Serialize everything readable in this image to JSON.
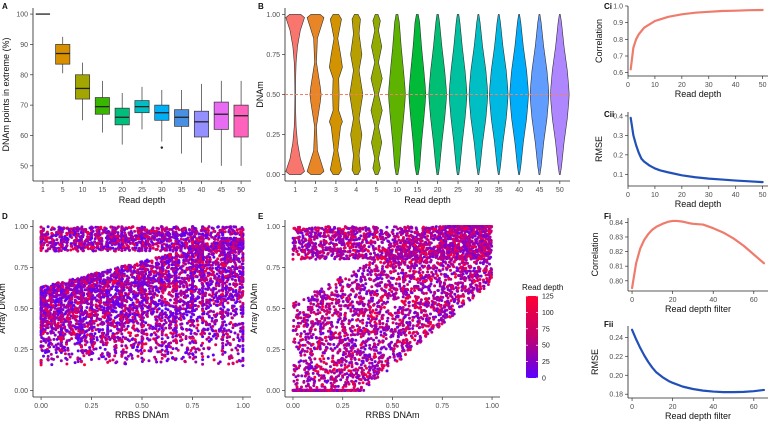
{
  "chart_data": [
    {
      "id": "A",
      "panel_label": "A",
      "type": "box",
      "xlabel": "Read depth",
      "ylabel": "DNAm points in extreme (%)",
      "categories": [
        "1",
        "5",
        "10",
        "15",
        "20",
        "25",
        "30",
        "35",
        "40",
        "45",
        "50"
      ],
      "ylim": [
        45,
        102
      ],
      "yticks": [
        "50",
        "60",
        "70",
        "80",
        "90",
        "100"
      ],
      "ytick_values": [
        50,
        60,
        70,
        80,
        90,
        100
      ],
      "colors": [
        "#f8766d",
        "#d89000",
        "#a3a500",
        "#39b600",
        "#00bf7d",
        "#00bfc4",
        "#00b0f6",
        "#4a90e2",
        "#9590ff",
        "#e76bf3",
        "#ff62bc"
      ],
      "boxes": [
        {
          "min": 100,
          "q1": 100,
          "median": 100,
          "q3": 100,
          "max": 100,
          "outliers": []
        },
        {
          "min": 80.5,
          "q1": 83.5,
          "median": 87,
          "q3": 90,
          "max": 92.5,
          "outliers": []
        },
        {
          "min": 65,
          "q1": 72,
          "median": 75.5,
          "q3": 80,
          "max": 84,
          "outliers": []
        },
        {
          "min": 61,
          "q1": 67,
          "median": 69.5,
          "q3": 72.5,
          "max": 78,
          "outliers": []
        },
        {
          "min": 57,
          "q1": 63.5,
          "median": 66,
          "q3": 69,
          "max": 74,
          "outliers": []
        },
        {
          "min": 62,
          "q1": 67.5,
          "median": 69.5,
          "q3": 71.5,
          "max": 76,
          "outliers": []
        },
        {
          "min": 58,
          "q1": 65,
          "median": 67.5,
          "q3": 70,
          "max": 75,
          "outliers": [
            56
          ]
        },
        {
          "min": 54,
          "q1": 63,
          "median": 66,
          "q3": 68.5,
          "max": 75,
          "outliers": []
        },
        {
          "min": 51,
          "q1": 59.5,
          "median": 64.5,
          "q3": 68,
          "max": 77,
          "outliers": []
        },
        {
          "min": 50,
          "q1": 62,
          "median": 67,
          "q3": 71,
          "max": 78,
          "outliers": []
        },
        {
          "min": 50,
          "q1": 59.5,
          "median": 66.5,
          "q3": 70,
          "max": 78,
          "outliers": []
        }
      ]
    },
    {
      "id": "B",
      "panel_label": "B",
      "type": "violin",
      "xlabel": "Read depth",
      "ylabel": "DNAm",
      "categories": [
        "1",
        "2",
        "3",
        "4",
        "5",
        "10",
        "15",
        "20",
        "25",
        "30",
        "35",
        "40",
        "45",
        "50"
      ],
      "ylim": [
        0,
        1
      ],
      "yticks": [
        "0.00",
        "0.25",
        "0.50",
        "0.75",
        "1.00"
      ],
      "ytick_values": [
        0,
        0.25,
        0.5,
        0.75,
        1
      ],
      "reference_line": 0.5,
      "reference_color": "#f08060",
      "colors": [
        "#f8766d",
        "#e88526",
        "#d39200",
        "#b79f00",
        "#93aa00",
        "#5eb300",
        "#00ba38",
        "#00bf74",
        "#00c19f",
        "#00bfc4",
        "#00b9e3",
        "#00adfa",
        "#619cff",
        "#ae87ff",
        "#db72fb",
        "#f564e3",
        "#ff61c3"
      ],
      "kde_profiles": [
        {
          "y": [
            0,
            0.02,
            0.1,
            0.2,
            0.3,
            0.4,
            0.5,
            0.6,
            0.7,
            0.8,
            0.9,
            0.98,
            1
          ],
          "w": [
            0.6,
            1,
            0.55,
            0.25,
            0.1,
            0.05,
            0.03,
            0.05,
            0.1,
            0.25,
            0.55,
            1,
            0.6
          ]
        },
        {
          "y": [
            0,
            0.02,
            0.15,
            0.3,
            0.45,
            0.5,
            0.55,
            0.7,
            0.85,
            0.98,
            1
          ],
          "w": [
            0.5,
            0.9,
            0.2,
            0.1,
            0.5,
            0.6,
            0.5,
            0.1,
            0.2,
            0.9,
            0.5
          ]
        },
        {
          "y": [
            0,
            0.03,
            0.15,
            0.3,
            0.33,
            0.4,
            0.5,
            0.6,
            0.67,
            0.75,
            0.85,
            0.97,
            1
          ],
          "w": [
            0.3,
            0.6,
            0.2,
            0.5,
            0.7,
            0.3,
            0.35,
            0.3,
            0.7,
            0.5,
            0.2,
            0.6,
            0.3
          ]
        },
        {
          "y": [
            0,
            0.03,
            0.12,
            0.25,
            0.35,
            0.5,
            0.65,
            0.75,
            0.88,
            0.97,
            1
          ],
          "w": [
            0.2,
            0.45,
            0.3,
            0.6,
            0.3,
            0.7,
            0.3,
            0.6,
            0.3,
            0.45,
            0.2
          ]
        },
        {
          "y": [
            0,
            0.04,
            0.1,
            0.2,
            0.3,
            0.4,
            0.5,
            0.6,
            0.7,
            0.8,
            0.9,
            0.96,
            1
          ],
          "w": [
            0.15,
            0.4,
            0.2,
            0.55,
            0.2,
            0.6,
            0.2,
            0.6,
            0.2,
            0.55,
            0.2,
            0.4,
            0.15
          ]
        },
        {
          "y": [
            0,
            0.05,
            0.2,
            0.35,
            0.45,
            0.5,
            0.55,
            0.65,
            0.8,
            0.95,
            1
          ],
          "w": [
            0.1,
            0.25,
            0.45,
            0.7,
            0.85,
            0.9,
            0.85,
            0.7,
            0.45,
            0.25,
            0.1
          ]
        },
        {
          "y": [
            0,
            0.05,
            0.2,
            0.35,
            0.45,
            0.5,
            0.55,
            0.65,
            0.8,
            0.95,
            1
          ],
          "w": [
            0.08,
            0.2,
            0.45,
            0.75,
            0.9,
            0.95,
            0.9,
            0.75,
            0.45,
            0.2,
            0.08
          ]
        },
        {
          "y": [
            0,
            0.05,
            0.2,
            0.35,
            0.45,
            0.5,
            0.55,
            0.65,
            0.8,
            0.95,
            1
          ],
          "w": [
            0.05,
            0.18,
            0.45,
            0.8,
            0.95,
            1,
            0.95,
            0.8,
            0.45,
            0.18,
            0.05
          ]
        }
      ],
      "profile_index": [
        0,
        1,
        2,
        3,
        4,
        5,
        5,
        6,
        6,
        7,
        7,
        7,
        7,
        7
      ]
    },
    {
      "id": "Ci",
      "panel_label": "Ci",
      "type": "line",
      "xlabel": "Read depth",
      "ylabel": "Correlation",
      "x": [
        1,
        2,
        3,
        4,
        5,
        6,
        8,
        10,
        12,
        15,
        20,
        25,
        30,
        35,
        40,
        45,
        50
      ],
      "y": [
        0.62,
        0.75,
        0.8,
        0.83,
        0.85,
        0.87,
        0.89,
        0.91,
        0.92,
        0.935,
        0.95,
        0.96,
        0.965,
        0.97,
        0.972,
        0.975,
        0.976
      ],
      "xlim": [
        0,
        52
      ],
      "ylim": [
        0.58,
        1.0
      ],
      "xticks": [
        "0",
        "10",
        "20",
        "30",
        "40",
        "50"
      ],
      "xtick_values": [
        0,
        10,
        20,
        30,
        40,
        50
      ],
      "yticks": [
        "0.6",
        "0.7",
        "0.8",
        "0.9",
        "1.0"
      ],
      "ytick_values": [
        0.6,
        0.7,
        0.8,
        0.9,
        1.0
      ],
      "color": "#ef7b6d"
    },
    {
      "id": "Cii",
      "panel_label": "Cii",
      "type": "line",
      "xlabel": "Read depth",
      "ylabel": "RMSE",
      "x": [
        1,
        2,
        3,
        4,
        5,
        6,
        8,
        10,
        12,
        15,
        20,
        25,
        30,
        35,
        40,
        45,
        50
      ],
      "y": [
        0.39,
        0.3,
        0.25,
        0.21,
        0.18,
        0.165,
        0.145,
        0.13,
        0.12,
        0.11,
        0.095,
        0.085,
        0.078,
        0.073,
        0.068,
        0.064,
        0.06
      ],
      "xlim": [
        0,
        52
      ],
      "ylim": [
        0.04,
        0.42
      ],
      "xticks": [
        "0",
        "10",
        "20",
        "30",
        "40",
        "50"
      ],
      "xtick_values": [
        0,
        10,
        20,
        30,
        40,
        50
      ],
      "yticks": [
        "0.1",
        "0.2",
        "0.3",
        "0.4"
      ],
      "ytick_values": [
        0.1,
        0.2,
        0.3,
        0.4
      ],
      "color": "#2050b8"
    },
    {
      "id": "D",
      "panel_label": "D",
      "type": "scatter",
      "xlabel": "RRBS DNAm",
      "ylabel": "Array DNAm",
      "xlim": [
        -0.04,
        1.04
      ],
      "ylim": [
        -0.04,
        1.04
      ],
      "xticks": [
        "0.00",
        "0.25",
        "0.50",
        "0.75",
        "1.00"
      ],
      "xtick_values": [
        0,
        0.25,
        0.5,
        0.75,
        1
      ],
      "yticks": [
        "0.00",
        "0.25",
        "0.50",
        "0.75",
        "1.00"
      ],
      "ytick_values": [
        0,
        0.25,
        0.5,
        0.75,
        1
      ],
      "point_count": 5200,
      "seed": 11
    },
    {
      "id": "E",
      "panel_label": "E",
      "type": "scatter",
      "xlabel": "RRBS DNAm",
      "ylabel": "Array DNAm",
      "xlim": [
        -0.04,
        1.04
      ],
      "ylim": [
        -0.04,
        1.04
      ],
      "xticks": [
        "0.00",
        "0.25",
        "0.50",
        "0.75",
        "1.00"
      ],
      "xtick_values": [
        0,
        0.25,
        0.5,
        0.75,
        1
      ],
      "yticks": [
        "0.00",
        "0.25",
        "0.50",
        "0.75",
        "1.00"
      ],
      "ytick_values": [
        0,
        0.25,
        0.5,
        0.75,
        1
      ],
      "point_count": 4200,
      "seed": 29,
      "legend": {
        "title": "Read depth",
        "labels": [
          "125",
          "100",
          "75",
          "50",
          "25",
          "0"
        ],
        "label_values": [
          125,
          100,
          75,
          50,
          25,
          0
        ],
        "range": [
          0,
          125
        ],
        "low_color": "#5a00ff",
        "high_color": "#ff0033"
      }
    },
    {
      "id": "Fi",
      "panel_label": "Fi",
      "type": "line",
      "xlabel": "Read depth filter",
      "ylabel": "Correlation",
      "x": [
        0,
        2,
        4,
        6,
        8,
        10,
        12,
        15,
        18,
        20,
        22,
        25,
        28,
        30,
        35,
        40,
        45,
        50,
        55,
        60,
        65
      ],
      "y": [
        0.795,
        0.812,
        0.822,
        0.828,
        0.832,
        0.835,
        0.837,
        0.839,
        0.8405,
        0.841,
        0.841,
        0.8405,
        0.8395,
        0.839,
        0.8385,
        0.836,
        0.833,
        0.829,
        0.824,
        0.818,
        0.812
      ],
      "xlim": [
        -2,
        67
      ],
      "ylim": [
        0.793,
        0.843
      ],
      "xticks": [
        "0",
        "20",
        "40",
        "60"
      ],
      "xtick_values": [
        0,
        20,
        40,
        60
      ],
      "yticks": [
        "0.80",
        "0.81",
        "0.82",
        "0.83",
        "0.84"
      ],
      "ytick_values": [
        0.8,
        0.81,
        0.82,
        0.83,
        0.84
      ],
      "color": "#ef7b6d"
    },
    {
      "id": "Fii",
      "panel_label": "Fii",
      "type": "line",
      "xlabel": "Read depth filter",
      "ylabel": "RMSE",
      "x": [
        0,
        2,
        4,
        6,
        8,
        10,
        12,
        15,
        18,
        20,
        25,
        30,
        35,
        40,
        45,
        50,
        55,
        60,
        65
      ],
      "y": [
        0.248,
        0.238,
        0.229,
        0.221,
        0.214,
        0.208,
        0.203,
        0.198,
        0.194,
        0.192,
        0.188,
        0.1855,
        0.1838,
        0.1828,
        0.1822,
        0.1822,
        0.1825,
        0.1832,
        0.1845
      ],
      "xlim": [
        -2,
        67
      ],
      "ylim": [
        0.176,
        0.252
      ],
      "xticks": [
        "0",
        "20",
        "40",
        "60"
      ],
      "xtick_values": [
        0,
        20,
        40,
        60
      ],
      "yticks": [
        "0.18",
        "0.20",
        "0.22",
        "0.24"
      ],
      "ytick_values": [
        0.18,
        0.2,
        0.22,
        0.24
      ],
      "color": "#2050b8"
    }
  ]
}
